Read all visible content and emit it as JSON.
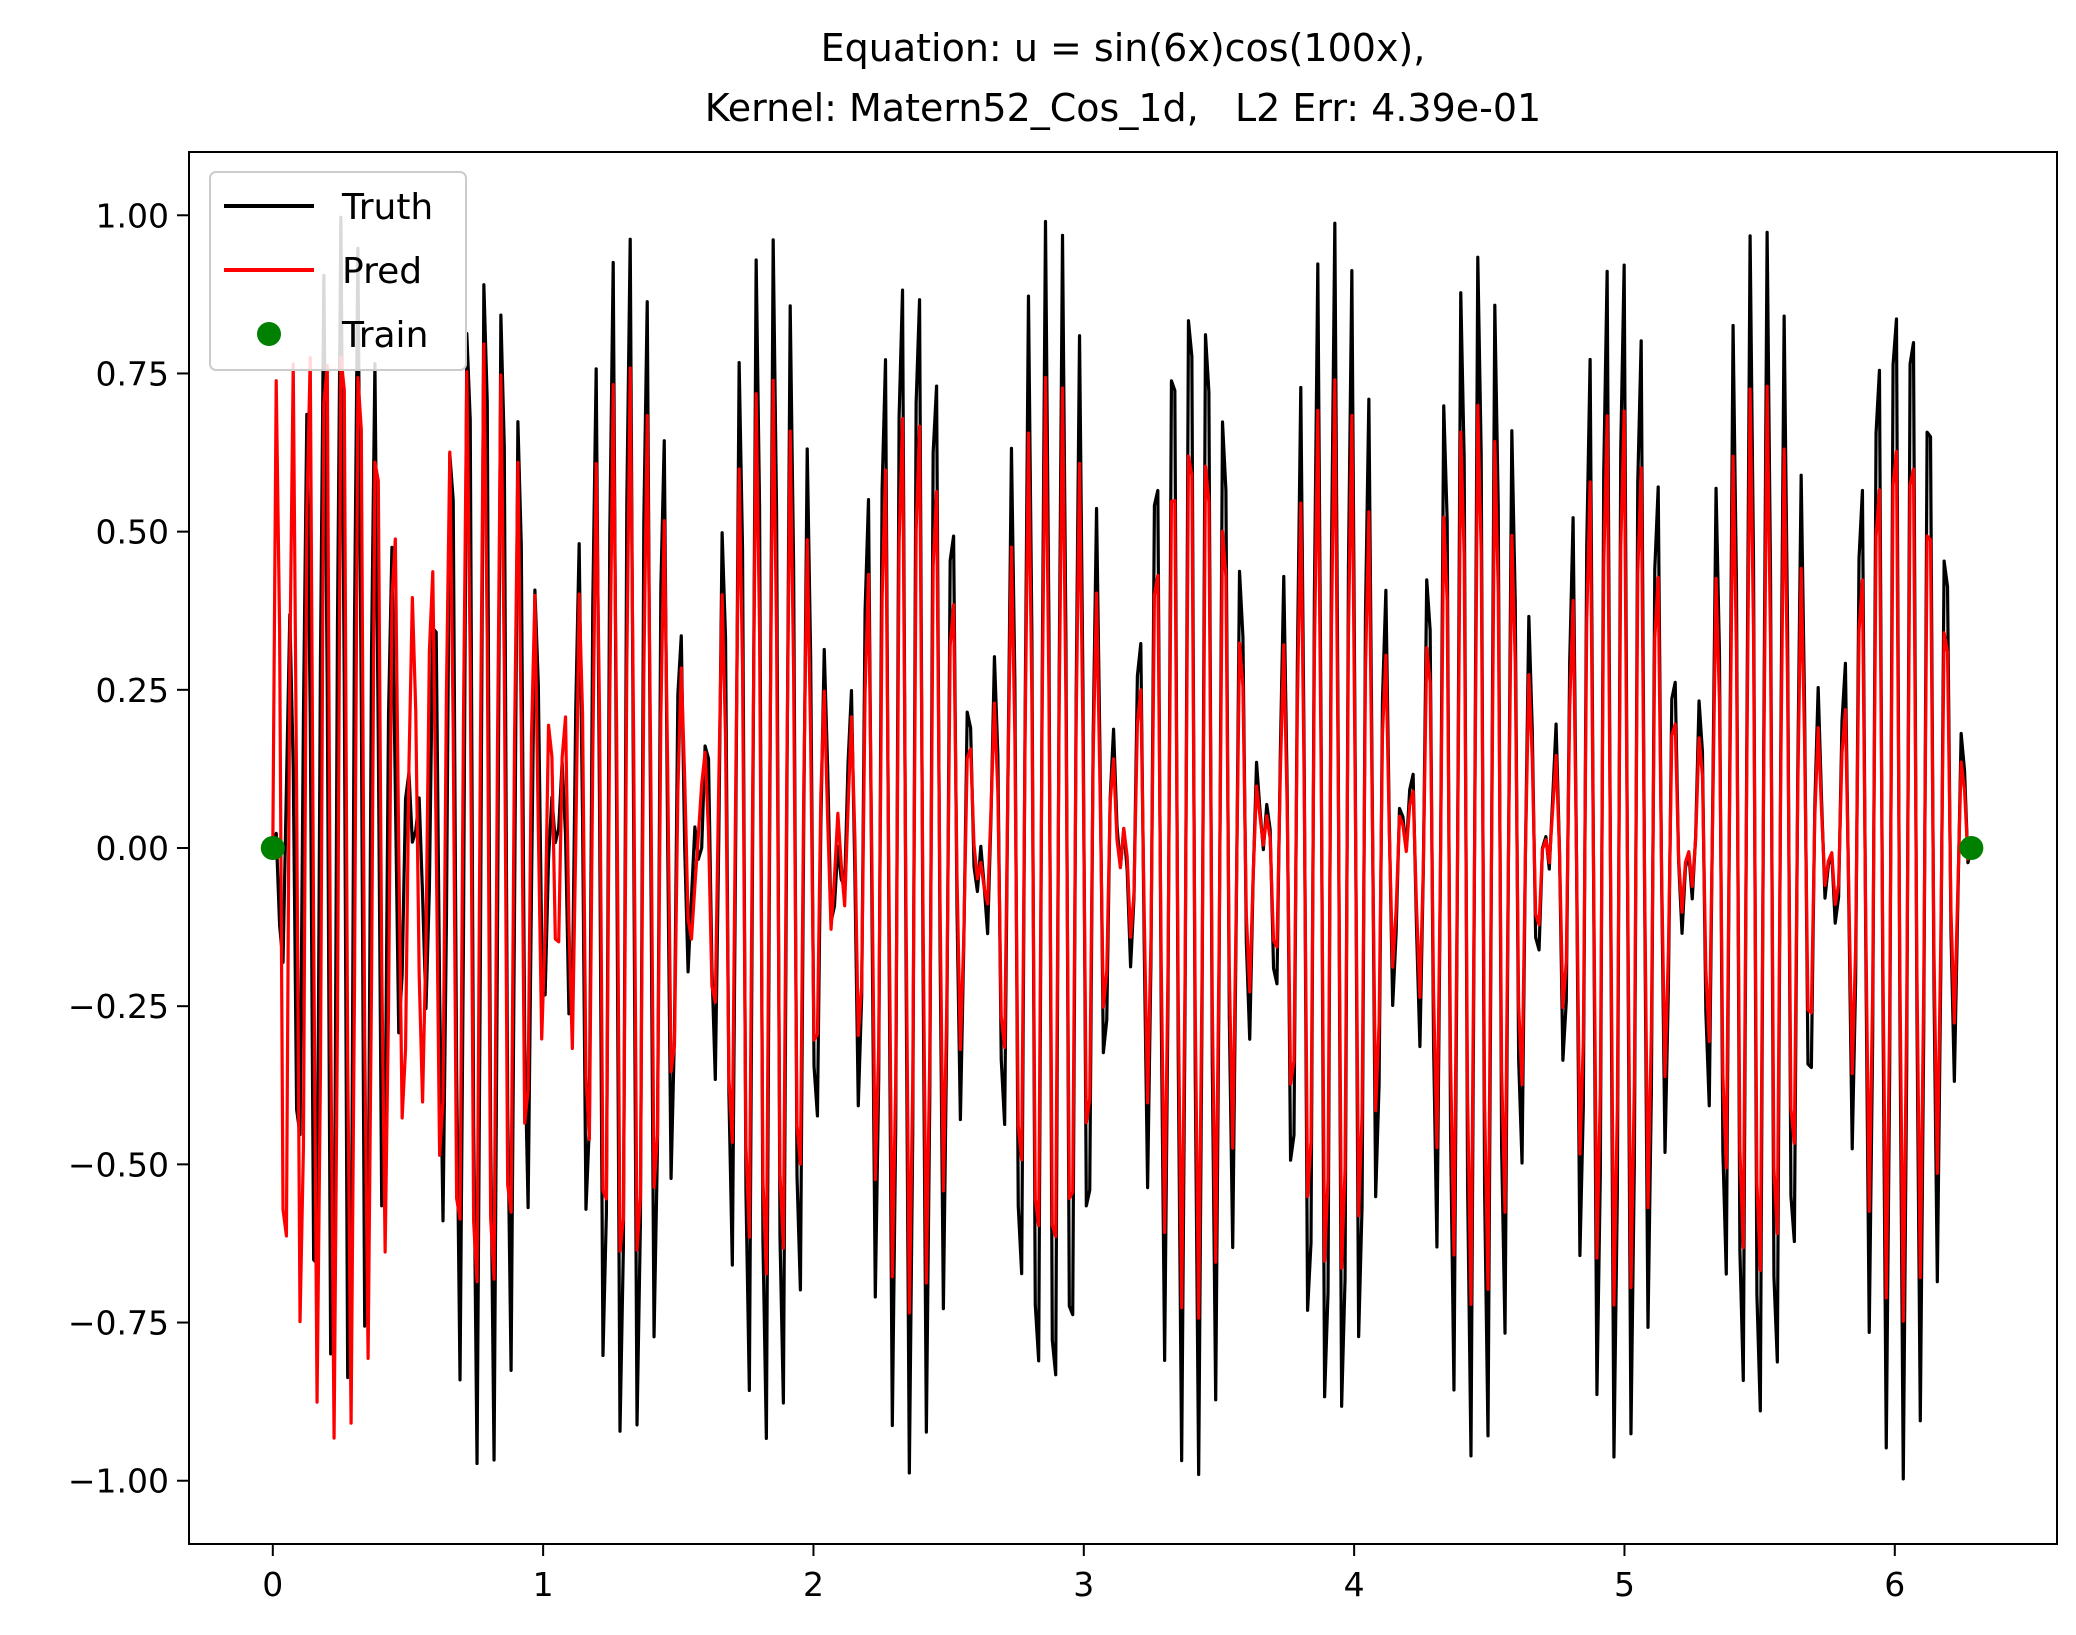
{
  "chart_data": {
    "type": "line",
    "title_line1": "Equation: u = sin(6x)cos(100x),",
    "title_line2": "Kernel: Matern52_Cos_1d,   L2 Err: 4.39e-01",
    "xlabel": "",
    "ylabel": "",
    "xlim": [
      -0.31,
      6.6
    ],
    "ylim": [
      -1.1,
      1.1
    ],
    "x_ticks": [
      0,
      1,
      2,
      3,
      4,
      5,
      6
    ],
    "x_tick_labels": [
      "0",
      "1",
      "2",
      "3",
      "4",
      "5",
      "6"
    ],
    "y_ticks": [
      1.0,
      0.75,
      0.5,
      0.25,
      0.0,
      -0.25,
      -0.5,
      -0.75,
      -1.0
    ],
    "y_tick_labels": [
      "1.00",
      "0.75",
      "0.50",
      "0.25",
      "0.00",
      "−0.25",
      "−0.50",
      "−0.75",
      "−1.00"
    ],
    "grid": false,
    "legend_position": "top-left",
    "series": [
      {
        "name": "Truth",
        "kind": "line",
        "color": "#000000",
        "expression": "sin(6x)cos(100x)",
        "x_range": [
          0,
          6.2832
        ],
        "samples": 500
      },
      {
        "name": "Pred",
        "kind": "line",
        "color": "#ff0000",
        "expression": "0.77*sin(100x)*e^(-1.28x)+0.75*cos(100x)*sin(6x)",
        "x_range": [
          0,
          6.2832
        ],
        "samples": 500
      },
      {
        "name": "Train",
        "kind": "scatter",
        "color": "#008000",
        "x": [
          0,
          6.2832
        ],
        "y": [
          0,
          0
        ]
      }
    ]
  }
}
